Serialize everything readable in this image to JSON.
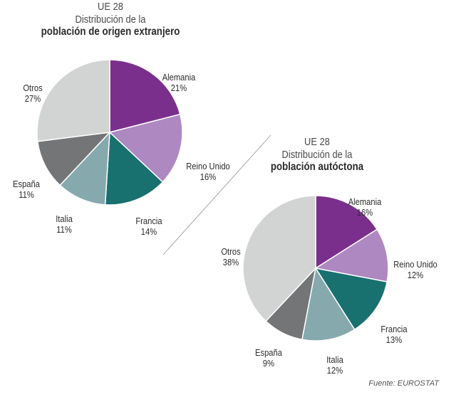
{
  "chart_data": [
    {
      "type": "pie",
      "title_lines": [
        "UE 28",
        "Distribución de la",
        "población de origen extranjero"
      ],
      "slices": [
        {
          "label": "Alemania",
          "pct_label": "21%",
          "value": 21,
          "color": "#7b2f8c"
        },
        {
          "label": "Reino Unido",
          "pct_label": "16%",
          "value": 16,
          "color": "#ae88c0"
        },
        {
          "label": "Francia",
          "pct_label": "14%",
          "value": 14,
          "color": "#18706f"
        },
        {
          "label": "Italia",
          "pct_label": "11%",
          "value": 11,
          "color": "#86a9ad"
        },
        {
          "label": "España",
          "pct_label": "11%",
          "value": 11,
          "color": "#747577"
        },
        {
          "label": "Otros",
          "pct_label": "27%",
          "value": 27,
          "color": "#d2d3d3"
        }
      ]
    },
    {
      "type": "pie",
      "title_lines": [
        "UE 28",
        "Distribución de la",
        "población autóctona"
      ],
      "slices": [
        {
          "label": "Alemania",
          "pct_label": "16%",
          "value": 16,
          "color": "#7b2f8c"
        },
        {
          "label": "Reino Unido",
          "pct_label": "12%",
          "value": 12,
          "color": "#ae88c0"
        },
        {
          "label": "Francia",
          "pct_label": "13%",
          "value": 13,
          "color": "#18706f"
        },
        {
          "label": "Italia",
          "pct_label": "12%",
          "value": 12,
          "color": "#86a9ad"
        },
        {
          "label": "España",
          "pct_label": "9%",
          "value": 9,
          "color": "#747577"
        },
        {
          "label": "Otros",
          "pct_label": "38%",
          "value": 38,
          "color": "#d2d3d3"
        }
      ]
    }
  ],
  "source": "Fuente: EUROSTAT"
}
